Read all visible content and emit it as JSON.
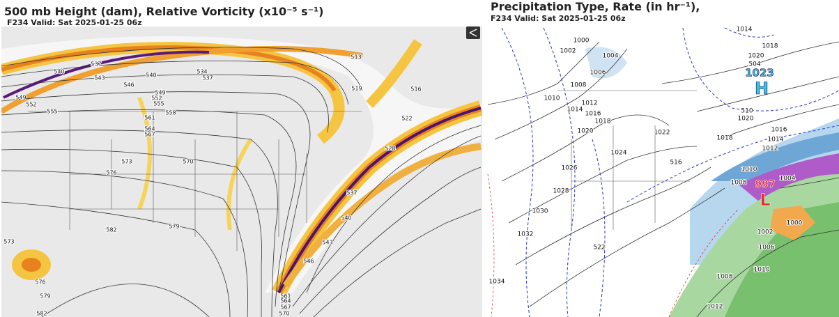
{
  "left_panel": {
    "title": "500 mb Height (dam), Relative Vorticity (x10⁻⁵ s⁻¹)",
    "subtitle": "F234 Valid: Sat 2025-01-25 06z",
    "contour_labels": [
      "537",
      "540",
      "543",
      "546",
      "540",
      "534",
      "537",
      "549",
      "552",
      "555",
      "558",
      "561",
      "564",
      "567",
      "570",
      "573",
      "576",
      "579",
      "582",
      "573",
      "576",
      "579",
      "582",
      "513",
      "519",
      "516",
      "522",
      "528",
      "537",
      "540",
      "543",
      "546",
      "561",
      "564",
      "567",
      "570",
      "549",
      "552",
      "555"
    ]
  },
  "right_panel": {
    "title": "Precipitation Type, Rate (in hr⁻¹),",
    "subtitle": "F234 Valid: Sat 2025-01-25 06z",
    "contour_labels": [
      "1000",
      "1002",
      "1004",
      "1006",
      "1008",
      "1010",
      "1012",
      "1014",
      "1016",
      "1018",
      "1020",
      "1022",
      "1024",
      "1026",
      "1028",
      "1030",
      "1032",
      "1034",
      "504",
      "510",
      "516",
      "522",
      "1018",
      "1020",
      "1016",
      "1014",
      "1012",
      "1010",
      "1008",
      "1004",
      "1000",
      "1002",
      "1006",
      "1010",
      "1008",
      "1012",
      "1014",
      "1018",
      "1020"
    ],
    "high_center": {
      "pressure": "1023",
      "symbol": "H"
    },
    "low_center": {
      "pressure": "997",
      "symbol": "L"
    }
  }
}
